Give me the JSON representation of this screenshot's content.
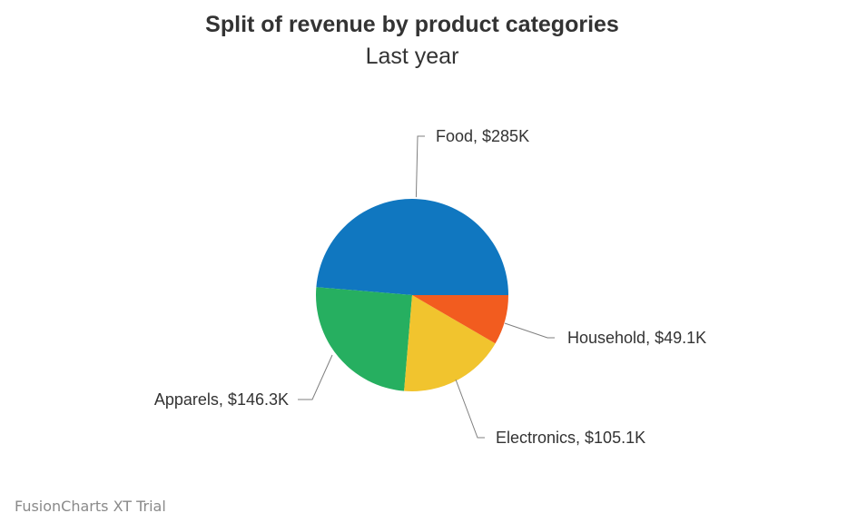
{
  "chart_data": {
    "type": "pie",
    "title": "Split of revenue by product categories",
    "subtitle": "Last year",
    "number_prefix": "$",
    "slices": [
      {
        "label": "Food",
        "value": 285000,
        "display": "$285K",
        "color": "#1077c0"
      },
      {
        "label": "Apparels",
        "value": 146300,
        "display": "$146.3K",
        "color": "#26af60"
      },
      {
        "label": "Electronics",
        "value": 105100,
        "display": "$105.1K",
        "color": "#f1c42e"
      },
      {
        "label": "Household",
        "value": 49100,
        "display": "$49.1K",
        "color": "#f25c1f"
      }
    ],
    "start_angle_deg": 0,
    "direction": "counterclockwise",
    "legend": "none"
  },
  "watermark": "FusionCharts XT Trial"
}
